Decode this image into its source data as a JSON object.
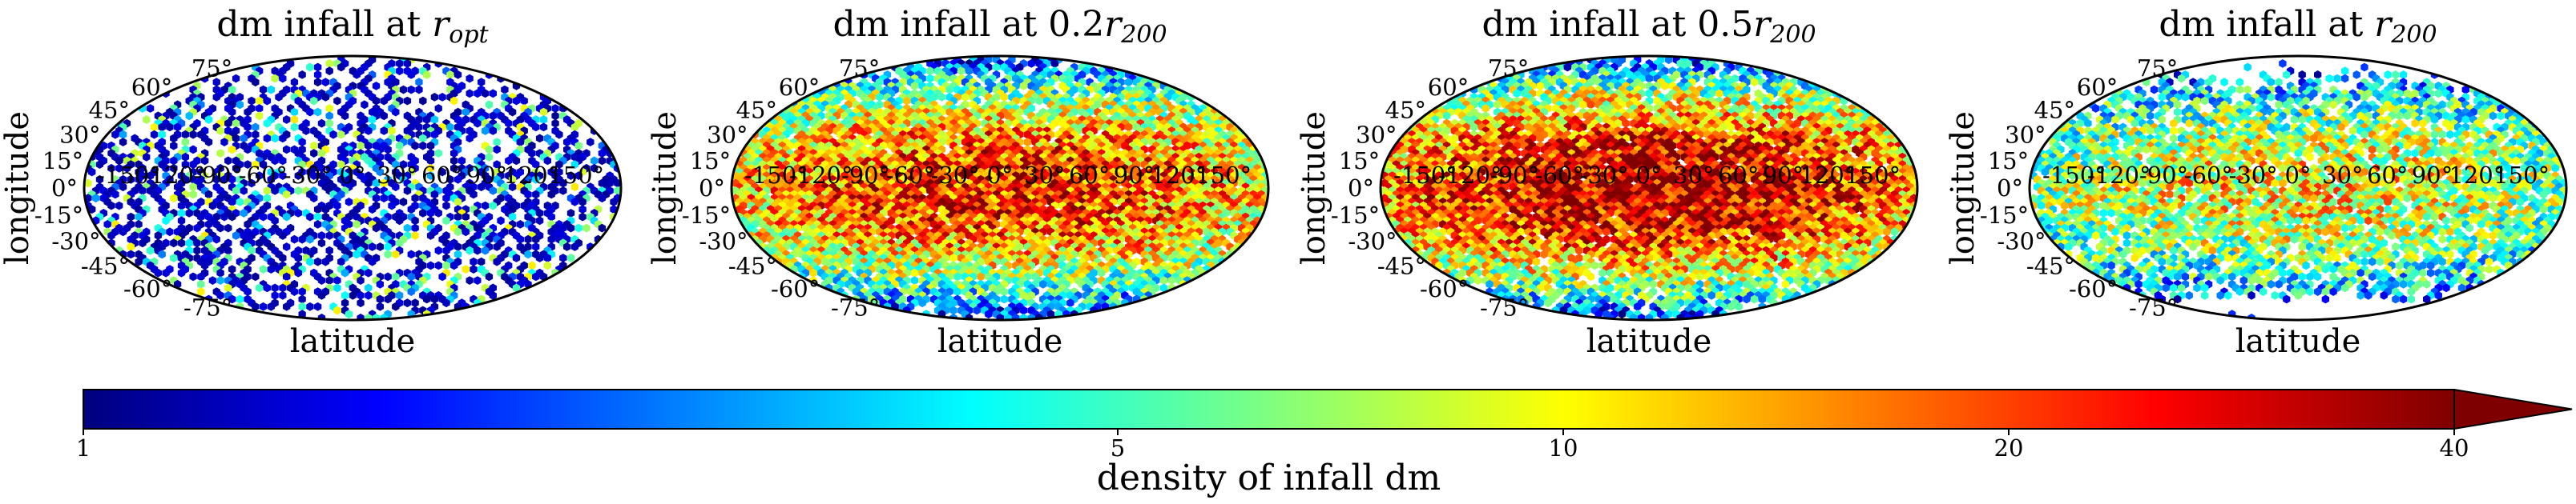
{
  "chart_data": {
    "type": "heatmap",
    "projection": "mollweide",
    "panels": [
      {
        "title_prefix": "dm infall at ",
        "title_symbol": "r",
        "title_sub": "opt",
        "xlabel": "latitude",
        "ylabel": "longitude",
        "density_scale": 0.3,
        "coverage": 0.45,
        "lat_extent": 90
      },
      {
        "title_prefix": "dm infall at 0.2",
        "title_symbol": "r",
        "title_sub": "200",
        "xlabel": "latitude",
        "ylabel": "longitude",
        "density_scale": 1.0,
        "coverage": 0.99,
        "lat_extent": 90
      },
      {
        "title_prefix": "dm infall at 0.5",
        "title_symbol": "r",
        "title_sub": "200",
        "xlabel": "latitude",
        "ylabel": "longitude",
        "density_scale": 1.12,
        "coverage": 0.99,
        "lat_extent": 90
      },
      {
        "title_prefix": "dm infall at ",
        "title_symbol": "r",
        "title_sub": "200",
        "xlabel": "latitude",
        "ylabel": "longitude",
        "density_scale": 0.75,
        "coverage": 0.8,
        "lat_extent": 60
      }
    ],
    "x_ticks": [
      "-150°",
      "-120°",
      "-90°",
      "-60°",
      "-30°",
      "0°",
      "30°",
      "60°",
      "90°",
      "120°",
      "150°"
    ],
    "y_ticks": [
      "-75°",
      "-60°",
      "-45°",
      "-30°",
      "-15°",
      "0°",
      "15°",
      "30°",
      "45°",
      "60°",
      "75°"
    ],
    "x_tick_values": [
      -150,
      -120,
      -90,
      -60,
      -30,
      0,
      30,
      60,
      90,
      120,
      150
    ],
    "y_tick_values": [
      -75,
      -60,
      -45,
      -30,
      -15,
      0,
      15,
      30,
      45,
      60,
      75
    ],
    "colorbar": {
      "label": "density of infall dm",
      "scale": "log",
      "range": [
        1,
        40
      ],
      "ticks": [
        1,
        5,
        10,
        20,
        40
      ],
      "tick_labels": [
        "1",
        "5",
        "10",
        "20",
        "40"
      ],
      "extend": "max",
      "colormap": "jet",
      "colors": [
        "#00007f",
        "#0000ff",
        "#007fff",
        "#00ffff",
        "#7fff7f",
        "#ffff00",
        "#ff7f00",
        "#ff0000",
        "#7f0000"
      ]
    }
  }
}
